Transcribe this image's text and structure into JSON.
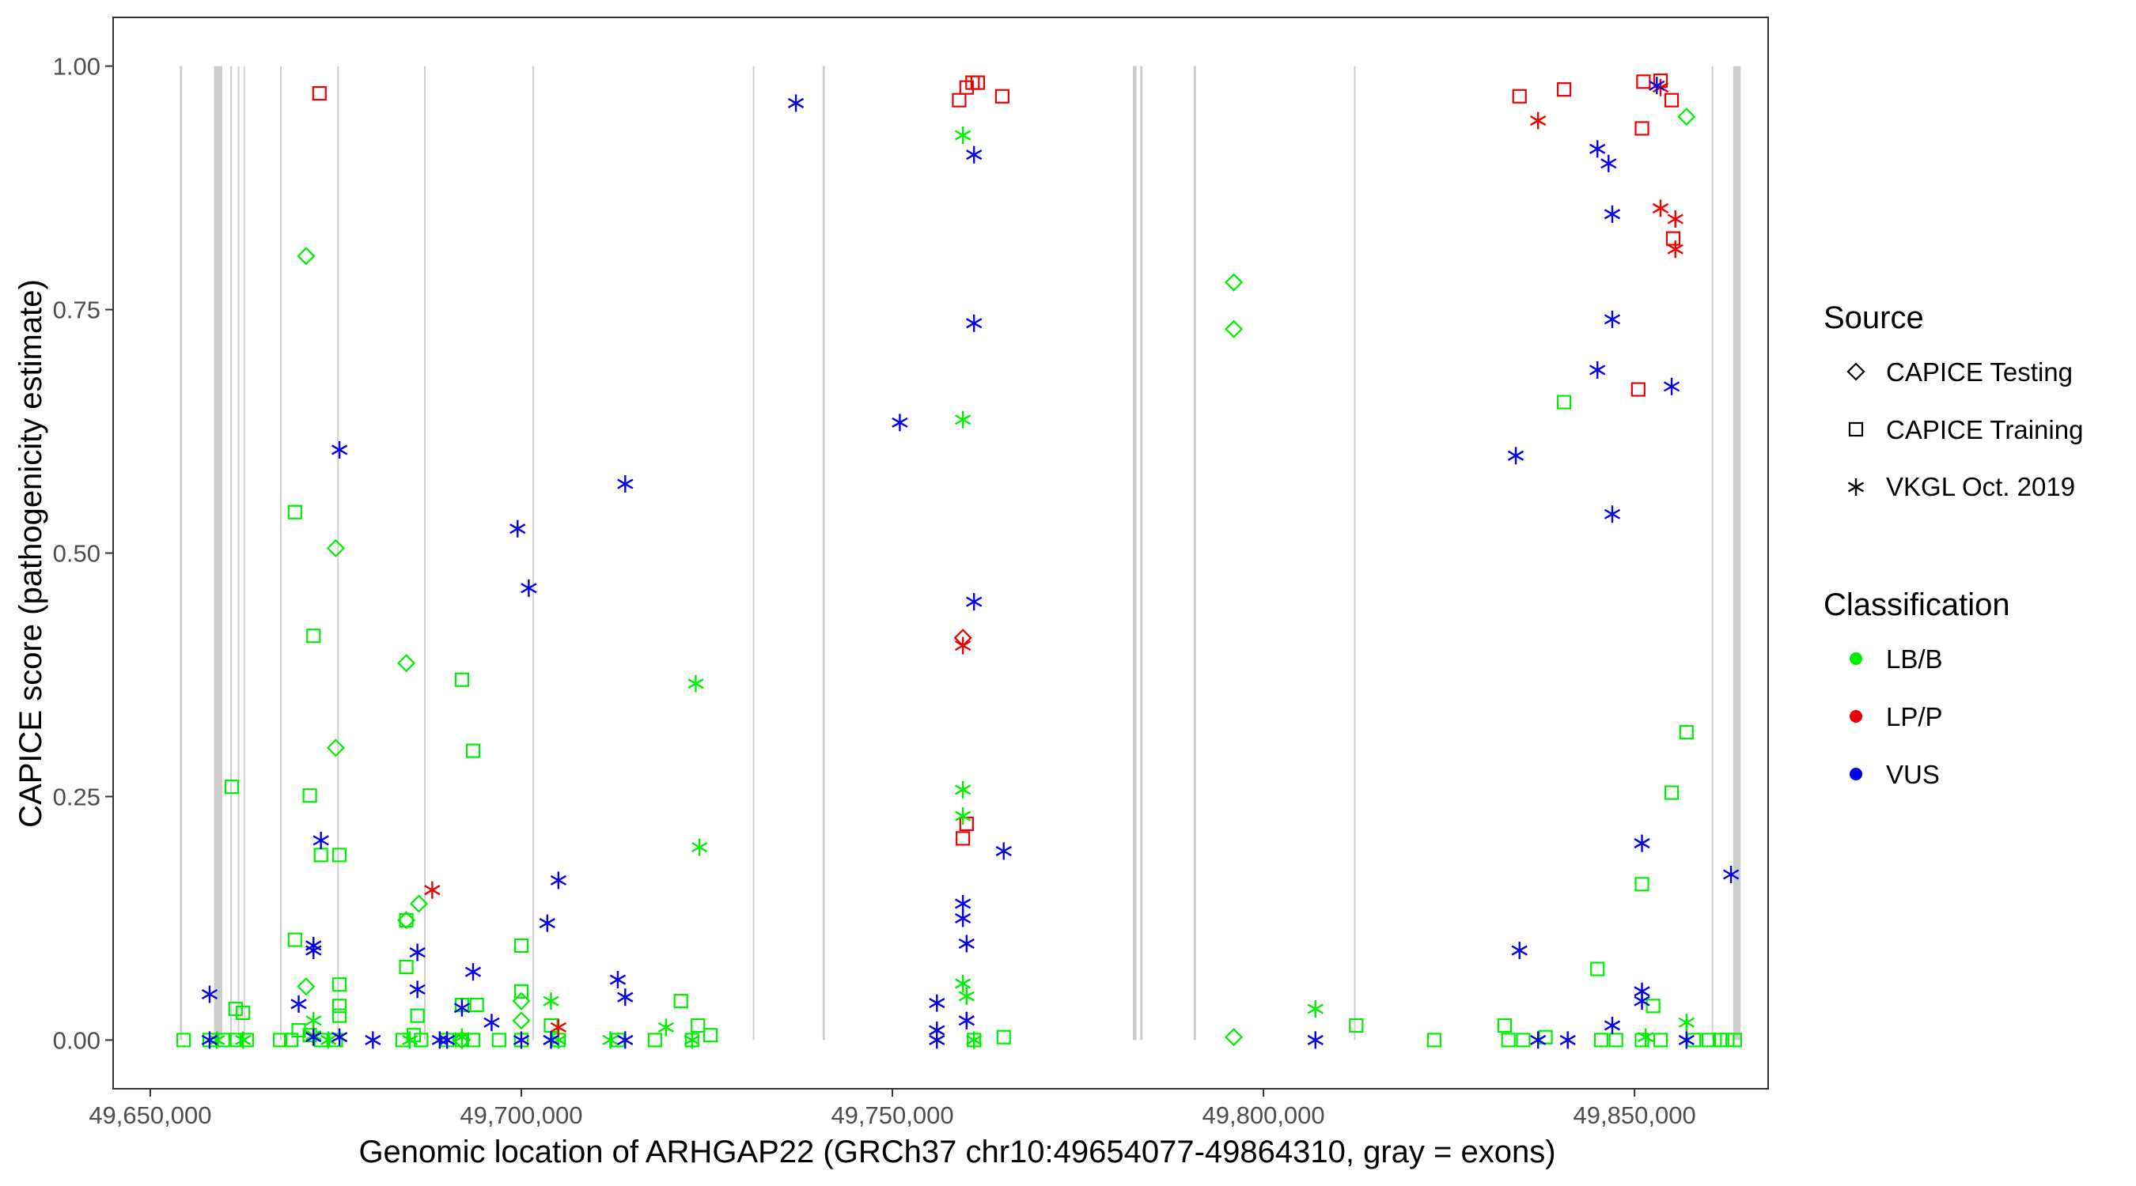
{
  "chart_data": {
    "type": "scatter",
    "title": "",
    "xlabel": "Genomic location of ARHGAP22 (GRCh37 chr10:49654077-49864310, gray = exons)",
    "ylabel": "CAPICE score (pathogenicity estimate)",
    "xlim": [
      49645000,
      49868000
    ],
    "ylim": [
      -0.05,
      1.05
    ],
    "x_ticks": [
      49650000,
      49700000,
      49750000,
      49800000,
      49850000
    ],
    "x_tick_labels": [
      "49,650,000",
      "49,700,000",
      "49,750,000",
      "49,800,000",
      "49,850,000"
    ],
    "y_ticks": [
      0,
      0.25,
      0.5,
      0.75,
      1
    ],
    "y_tick_labels": [
      "0.00",
      "0.25",
      "0.50",
      "0.75",
      "1.00"
    ],
    "grid": false,
    "legend_position": "right",
    "colors": {
      "LB/B": "#00ee00",
      "LP/P": "#ee0000",
      "VUS": "#0000ee",
      "exon": "#cccccc"
    },
    "legend": {
      "source": {
        "title": "Source",
        "entries": [
          {
            "label": "CAPICE Testing",
            "shape": "diamond"
          },
          {
            "label": "CAPICE Training",
            "shape": "square"
          },
          {
            "label": "VKGL Oct. 2019",
            "shape": "asterisk"
          }
        ]
      },
      "classification": {
        "title": "Classification",
        "entries": [
          {
            "label": "LB/B",
            "color": "#00ee00"
          },
          {
            "label": "LP/P",
            "color": "#ee0000"
          },
          {
            "label": "VUS",
            "color": "#0000ee"
          }
        ]
      }
    },
    "exons": [
      [
        49654000,
        49654300
      ],
      [
        49658600,
        49659700
      ],
      [
        49660800,
        49661000
      ],
      [
        49661800,
        49662000
      ],
      [
        49662600,
        49662750
      ],
      [
        49667500,
        49667700
      ],
      [
        49675200,
        49675400
      ],
      [
        49686900,
        49687100
      ],
      [
        49701500,
        49701700
      ],
      [
        49731200,
        49731400
      ],
      [
        49740600,
        49740900
      ],
      [
        49782400,
        49782900
      ],
      [
        49783400,
        49783700
      ],
      [
        49790600,
        49790900
      ],
      [
        49812200,
        49812400
      ],
      [
        49860400,
        49860600
      ],
      [
        49863300,
        49864300
      ]
    ],
    "series": [
      {
        "source": "CAPICE Testing",
        "classification": "LB/B",
        "shape": "diamond",
        "points": [
          [
            49671000,
            0.805
          ],
          [
            49675000,
            0.505
          ],
          [
            49675000,
            0.3
          ],
          [
            49684500,
            0.387
          ],
          [
            49684500,
            0.123
          ],
          [
            49686200,
            0.14
          ],
          [
            49671000,
            0.055
          ],
          [
            49700000,
            0.04
          ],
          [
            49700000,
            0.02
          ],
          [
            49692000,
            0.0
          ],
          [
            49796000,
            0.778
          ],
          [
            49796000,
            0.73
          ],
          [
            49796000,
            0.003
          ],
          [
            49857000,
            0.948
          ]
        ]
      },
      {
        "source": "CAPICE Testing",
        "classification": "LP/P",
        "shape": "diamond",
        "points": [
          [
            49759500,
            0.413
          ]
        ]
      },
      {
        "source": "CAPICE Training",
        "classification": "LB/B",
        "shape": "square",
        "points": [
          [
            49661000,
            0.26
          ],
          [
            49669500,
            0.542
          ],
          [
            49672000,
            0.415
          ],
          [
            49671500,
            0.251
          ],
          [
            49673000,
            0.19
          ],
          [
            49675500,
            0.19
          ],
          [
            49692000,
            0.37
          ],
          [
            49693500,
            0.297
          ],
          [
            49669500,
            0.103
          ],
          [
            49684500,
            0.123
          ],
          [
            49700000,
            0.097
          ],
          [
            49684500,
            0.075
          ],
          [
            49675500,
            0.057
          ],
          [
            49700000,
            0.05
          ],
          [
            49661500,
            0.032
          ],
          [
            49662500,
            0.028
          ],
          [
            49675500,
            0.035
          ],
          [
            49675500,
            0.025
          ],
          [
            49686000,
            0.025
          ],
          [
            49692000,
            0.036
          ],
          [
            49694000,
            0.036
          ],
          [
            49704000,
            0.015
          ],
          [
            49721500,
            0.04
          ],
          [
            49723800,
            0.015
          ],
          [
            49654500,
            0.0
          ],
          [
            49658000,
            0.0
          ],
          [
            49660000,
            0.0
          ],
          [
            49661500,
            0.0
          ],
          [
            49663000,
            0.0
          ],
          [
            49667500,
            0.0
          ],
          [
            49669000,
            0.0
          ],
          [
            49670000,
            0.01
          ],
          [
            49671500,
            0.005
          ],
          [
            49673000,
            0.0
          ],
          [
            49675000,
            0.0
          ],
          [
            49684000,
            0.0
          ],
          [
            49685500,
            0.005
          ],
          [
            49686500,
            0.0
          ],
          [
            49690000,
            0.0
          ],
          [
            49692000,
            0.0
          ],
          [
            49693500,
            0.0
          ],
          [
            49697000,
            0.0
          ],
          [
            49700000,
            0.0
          ],
          [
            49705000,
            0.0
          ],
          [
            49713000,
            0.0
          ],
          [
            49718000,
            0.0
          ],
          [
            49723000,
            0.0
          ],
          [
            49725500,
            0.005
          ],
          [
            49761000,
            0.0
          ],
          [
            49765000,
            0.003
          ],
          [
            49812500,
            0.015
          ],
          [
            49823000,
            0.0
          ],
          [
            49832500,
            0.015
          ],
          [
            49833000,
            0.0
          ],
          [
            49835000,
            0.0
          ],
          [
            49838000,
            0.003
          ],
          [
            49840500,
            0.655
          ],
          [
            49845000,
            0.073
          ],
          [
            49845500,
            0.0
          ],
          [
            49847500,
            0.0
          ],
          [
            49851000,
            0.16
          ],
          [
            49851000,
            0.0
          ],
          [
            49852500,
            0.035
          ],
          [
            49853500,
            0.0
          ],
          [
            49855000,
            0.254
          ],
          [
            49857000,
            0.316
          ],
          [
            49858000,
            0.0
          ],
          [
            49860000,
            0.0
          ],
          [
            49861500,
            0.0
          ],
          [
            49862500,
            0.0
          ],
          [
            49863500,
            0.0
          ]
        ]
      },
      {
        "source": "CAPICE Training",
        "classification": "LP/P",
        "shape": "square",
        "points": [
          [
            49672800,
            0.972
          ],
          [
            49759000,
            0.965
          ],
          [
            49760000,
            0.978
          ],
          [
            49760800,
            0.983
          ],
          [
            49761500,
            0.983
          ],
          [
            49764800,
            0.969
          ],
          [
            49759500,
            0.207
          ],
          [
            49760000,
            0.222
          ],
          [
            49834500,
            0.969
          ],
          [
            49840500,
            0.976
          ],
          [
            49850500,
            0.668
          ],
          [
            49851000,
            0.936
          ],
          [
            49851200,
            0.984
          ],
          [
            49853500,
            0.985
          ],
          [
            49855000,
            0.965
          ],
          [
            49855200,
            0.823
          ]
        ]
      },
      {
        "source": "VKGL Oct. 2019",
        "classification": "LB/B",
        "shape": "asterisk",
        "points": [
          [
            49759500,
            0.929
          ],
          [
            49759500,
            0.637
          ],
          [
            49759500,
            0.257
          ],
          [
            49759500,
            0.23
          ],
          [
            49759500,
            0.058
          ],
          [
            49760000,
            0.045
          ],
          [
            49723500,
            0.366
          ],
          [
            49724000,
            0.198
          ],
          [
            49719500,
            0.013
          ],
          [
            49723000,
            0.0
          ],
          [
            49704000,
            0.04
          ],
          [
            49705000,
            0.0
          ],
          [
            49712000,
            0.0
          ],
          [
            49672000,
            0.02
          ],
          [
            49672000,
            0.005
          ],
          [
            49674000,
            0.0
          ],
          [
            49685000,
            0.0
          ],
          [
            49692000,
            0.003
          ],
          [
            49807000,
            0.032
          ],
          [
            49857000,
            0.018
          ],
          [
            49851500,
            0.003
          ],
          [
            49761000,
            0.0
          ],
          [
            49662500,
            0.0
          ],
          [
            49659000,
            0.0
          ]
        ]
      },
      {
        "source": "VKGL Oct. 2019",
        "classification": "LP/P",
        "shape": "asterisk",
        "points": [
          [
            49688000,
            0.154
          ],
          [
            49705000,
            0.013
          ],
          [
            49759500,
            0.405
          ],
          [
            49760000,
            0.02
          ],
          [
            49837000,
            0.944
          ],
          [
            49853500,
            0.854
          ],
          [
            49855500,
            0.843
          ],
          [
            49855500,
            0.812
          ],
          [
            49853500,
            0.978
          ]
        ]
      },
      {
        "source": "VKGL Oct. 2019",
        "classification": "VUS",
        "shape": "asterisk",
        "points": [
          [
            49737000,
            0.962
          ],
          [
            49761000,
            0.909
          ],
          [
            49761000,
            0.736
          ],
          [
            49751000,
            0.634
          ],
          [
            49761000,
            0.45
          ],
          [
            49765000,
            0.194
          ],
          [
            49759500,
            0.14
          ],
          [
            49759500,
            0.125
          ],
          [
            49760000,
            0.099
          ],
          [
            49756000,
            0.038
          ],
          [
            49756000,
            0.01
          ],
          [
            49756000,
            0.0
          ],
          [
            49760000,
            0.02
          ],
          [
            49714000,
            0.571
          ],
          [
            49699500,
            0.525
          ],
          [
            49701000,
            0.464
          ],
          [
            49705000,
            0.164
          ],
          [
            49703500,
            0.12
          ],
          [
            49693500,
            0.07
          ],
          [
            49686000,
            0.052
          ],
          [
            49686000,
            0.09
          ],
          [
            49690000,
            0.0
          ],
          [
            49696000,
            0.018
          ],
          [
            49692000,
            0.033
          ],
          [
            49713000,
            0.062
          ],
          [
            49714000,
            0.044
          ],
          [
            49714000,
            0.0
          ],
          [
            49704000,
            0.0
          ],
          [
            49675500,
            0.606
          ],
          [
            49673000,
            0.205
          ],
          [
            49672000,
            0.097
          ],
          [
            49672000,
            0.092
          ],
          [
            49670000,
            0.037
          ],
          [
            49672000,
            0.003
          ],
          [
            49675500,
            0.003
          ],
          [
            49658000,
            0.047
          ],
          [
            49658000,
            0.0
          ],
          [
            49680000,
            0.0
          ],
          [
            49689000,
            0.0
          ],
          [
            49700000,
            0.0
          ],
          [
            49807000,
            0.0
          ],
          [
            49834000,
            0.6
          ],
          [
            49834500,
            0.092
          ],
          [
            49837000,
            0.0
          ],
          [
            49845000,
            0.915
          ],
          [
            49846500,
            0.9
          ],
          [
            49847000,
            0.848
          ],
          [
            49847000,
            0.74
          ],
          [
            49845000,
            0.688
          ],
          [
            49855000,
            0.671
          ],
          [
            49847000,
            0.54
          ],
          [
            49851000,
            0.202
          ],
          [
            49863000,
            0.17
          ],
          [
            49851000,
            0.05
          ],
          [
            49851000,
            0.04
          ],
          [
            49847000,
            0.015
          ],
          [
            49853000,
            0.98
          ],
          [
            49841000,
            0.0
          ],
          [
            49857000,
            0.0
          ]
        ]
      }
    ]
  }
}
